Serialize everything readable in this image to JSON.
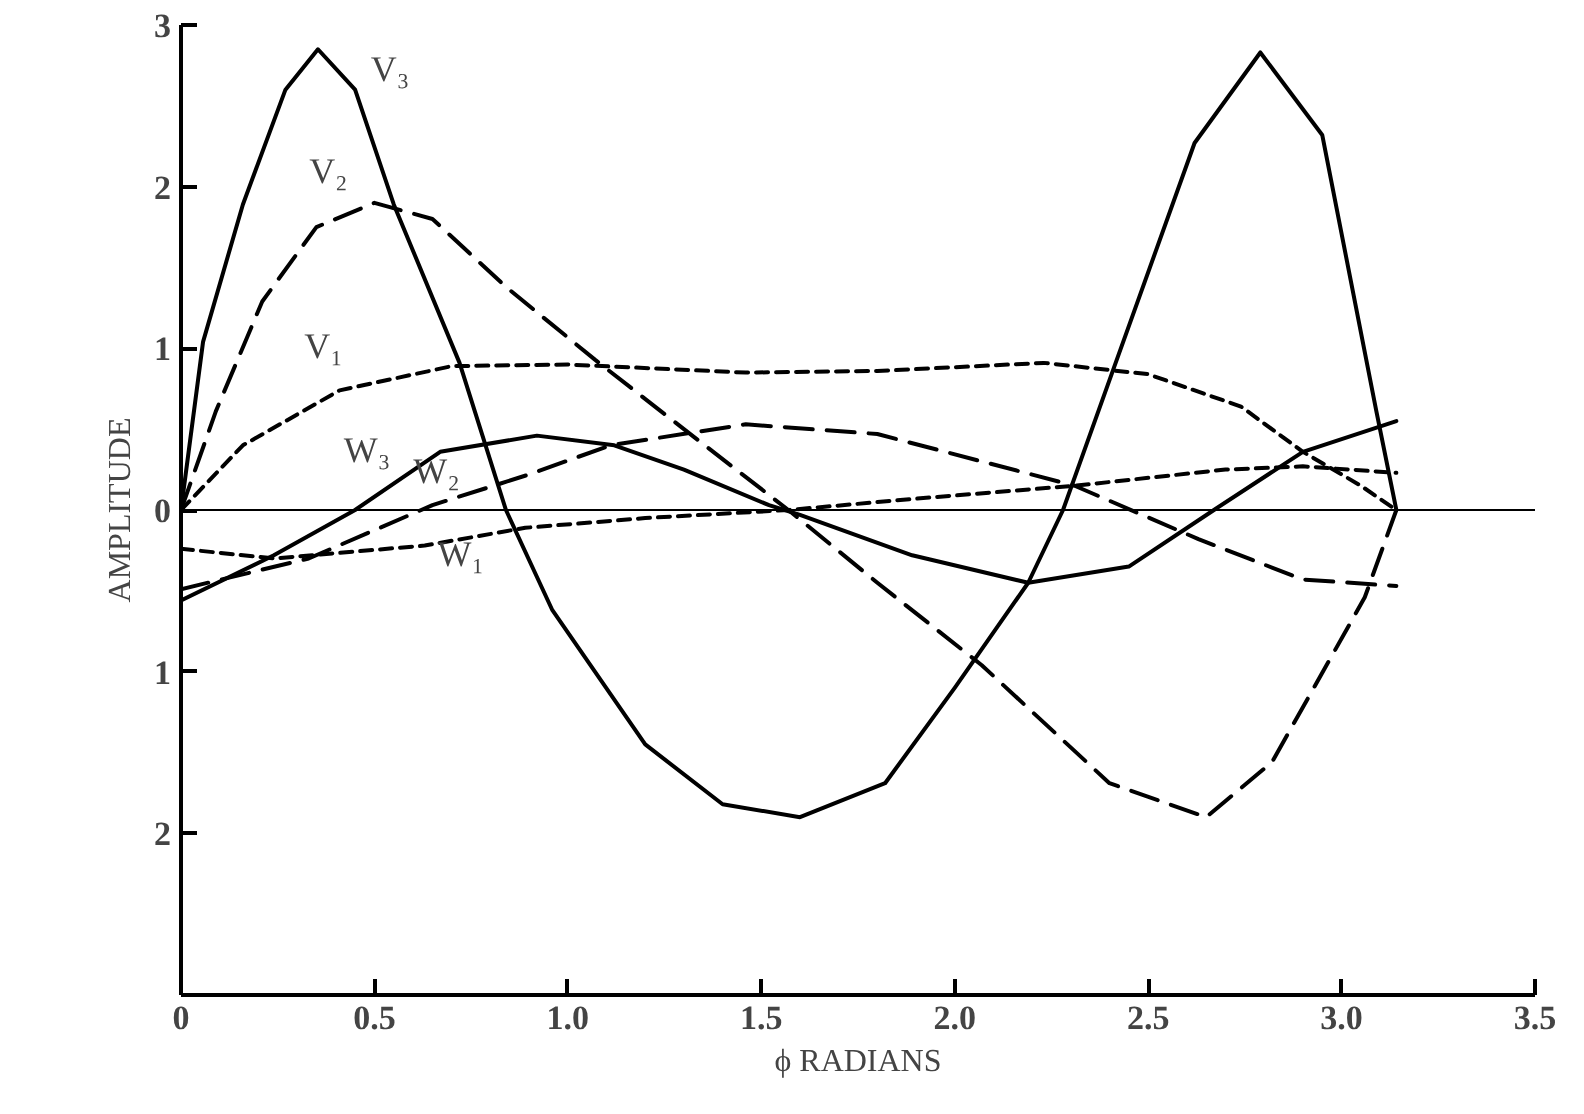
{
  "chart_data": {
    "type": "line",
    "xlabel": "ϕ RADIANS",
    "ylabel": "AMPLITUDE",
    "xlim": [
      0,
      3.5
    ],
    "ylim": [
      -3,
      3
    ],
    "xticks": [
      0,
      0.5,
      {
        "value": 1,
        "label": "1.0"
      },
      1.5,
      {
        "value": 2,
        "label": "2.0"
      },
      2.5,
      {
        "value": 3,
        "label": "3.0"
      },
      3.5
    ],
    "yticks": [
      {
        "value": -2,
        "label": "2"
      },
      {
        "value": -1,
        "label": "1"
      },
      0,
      1,
      2,
      3
    ],
    "grid": false,
    "ref_lines": [
      {
        "axis": "y",
        "value": 0,
        "label": null,
        "color": "#000000",
        "line_style": "solid"
      }
    ],
    "series": [
      {
        "name": "V₁",
        "color": "#000000",
        "line_style": "dotted",
        "x": [
          0,
          0.16,
          0.41,
          0.7,
          1.0,
          1.46,
          1.8,
          2.23,
          2.5,
          2.74,
          2.9,
          3.05,
          3.1416
        ],
        "values": [
          0,
          0.4,
          0.74,
          0.89,
          0.9,
          0.85,
          0.86,
          0.91,
          0.84,
          0.64,
          0.36,
          0.15,
          0
        ]
      },
      {
        "name": "V₂",
        "color": "#000000",
        "line_style": "dashed",
        "x": [
          0,
          0.09,
          0.21,
          0.35,
          0.5,
          0.65,
          0.84,
          1.07,
          1.3,
          1.57,
          1.8,
          2.07,
          2.4,
          2.65,
          2.82,
          3.06,
          3.1416
        ],
        "values": [
          0,
          0.61,
          1.29,
          1.75,
          1.9,
          1.8,
          1.38,
          0.93,
          0.5,
          0,
          -0.45,
          -0.96,
          -1.69,
          -1.9,
          -1.56,
          -0.54,
          0
        ]
      },
      {
        "name": "V₃",
        "color": "#000000",
        "line_style": "solid",
        "x": [
          0,
          0.057,
          0.16,
          0.27,
          0.354,
          0.45,
          0.55,
          0.72,
          0.84,
          0.96,
          1.2,
          1.4,
          1.6,
          1.82,
          2.0,
          2.19,
          2.28,
          2.41,
          2.62,
          2.79,
          2.95,
          3.09,
          3.1416
        ],
        "values": [
          0,
          1.04,
          1.89,
          2.6,
          2.85,
          2.6,
          1.89,
          0.91,
          0,
          -0.62,
          -1.45,
          -1.82,
          -1.9,
          -1.69,
          -1.1,
          -0.45,
          0,
          0.87,
          2.27,
          2.83,
          2.32,
          0.61,
          0
        ]
      },
      {
        "name": "W₁",
        "color": "#000000",
        "line_style": "dotted",
        "x": [
          0,
          0.24,
          0.63,
          0.89,
          1.2,
          1.57,
          1.9,
          2.31,
          2.7,
          2.9,
          3.1416
        ],
        "values": [
          -0.24,
          -0.3,
          -0.22,
          -0.11,
          -0.05,
          0,
          0.07,
          0.15,
          0.25,
          0.27,
          0.23
        ]
      },
      {
        "name": "W₂",
        "color": "#000000",
        "line_style": "dashed",
        "x": [
          0,
          0.33,
          0.65,
          0.9,
          1.11,
          1.46,
          1.8,
          2.31,
          2.63,
          2.9,
          3.1416
        ],
        "values": [
          -0.49,
          -0.3,
          0.03,
          0.22,
          0.4,
          0.53,
          0.47,
          0.15,
          -0.18,
          -0.43,
          -0.47
        ]
      },
      {
        "name": "W₃",
        "color": "#000000",
        "line_style": "solid",
        "x": [
          0,
          0.24,
          0.45,
          0.67,
          0.92,
          1.12,
          1.3,
          1.52,
          1.6,
          1.89,
          2.19,
          2.45,
          2.67,
          2.9,
          3.1416
        ],
        "values": [
          -0.56,
          -0.28,
          0,
          0.36,
          0.46,
          0.4,
          0.25,
          0.03,
          -0.03,
          -0.28,
          -0.45,
          -0.35,
          0,
          0.36,
          0.55
        ]
      }
    ]
  }
}
